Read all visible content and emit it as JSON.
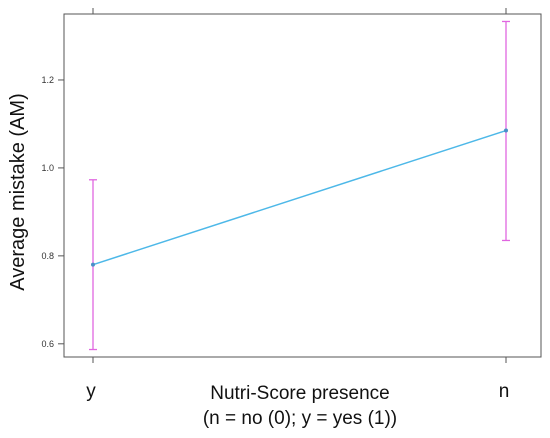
{
  "chart_data": {
    "type": "line",
    "title": "",
    "xlabel": "Nutri-Score presence",
    "xlabel_line2": "(n = no (0); y = yes (1))",
    "ylabel": "Average mistake (AM)",
    "categories": [
      "y",
      "n"
    ],
    "series": [
      {
        "values": [
          0.78,
          1.085
        ],
        "error_low": [
          0.587,
          0.835
        ],
        "error_high": [
          0.973,
          1.333
        ]
      }
    ],
    "ylim": [
      0.57,
      1.35
    ],
    "yticks": [
      0.6,
      0.8,
      1.0,
      1.2
    ],
    "ytick_labels": [
      "0.6",
      "0.8",
      "1.0",
      "1.2"
    ],
    "grid": false,
    "colors": {
      "line": "#4db8e8",
      "point": "#4a90c8",
      "error_bar": "#e066e0",
      "axis": "#555555"
    }
  }
}
